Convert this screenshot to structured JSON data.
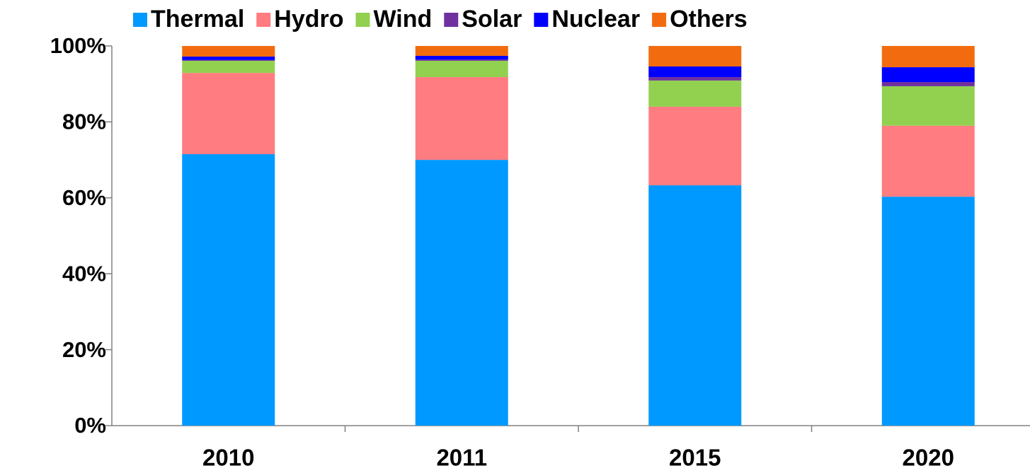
{
  "chart_data": {
    "type": "stacked_bar",
    "categories": [
      "2010",
      "2011",
      "2015",
      "2020"
    ],
    "series": [
      {
        "name": "Thermal",
        "color": "#0099ff",
        "values": [
          71.5,
          70.0,
          63.3,
          60.3
        ]
      },
      {
        "name": "Hydro",
        "color": "#ff7c80",
        "values": [
          21.4,
          21.8,
          20.7,
          18.7
        ]
      },
      {
        "name": "Wind",
        "color": "#92d050",
        "values": [
          3.2,
          4.3,
          6.9,
          10.4
        ]
      },
      {
        "name": "Solar",
        "color": "#7030a0",
        "values": [
          0.2,
          0.3,
          0.9,
          1.1
        ]
      },
      {
        "name": "Nuclear",
        "color": "#0000ff",
        "values": [
          0.9,
          1.0,
          2.8,
          3.9
        ]
      },
      {
        "name": "Others",
        "color": "#f26c0f",
        "values": [
          2.8,
          2.6,
          5.4,
          5.6
        ]
      }
    ],
    "ylim": [
      0,
      100
    ],
    "yticks": [
      {
        "value": 0,
        "label": "0%"
      },
      {
        "value": 20,
        "label": "20%"
      },
      {
        "value": 40,
        "label": "40%"
      },
      {
        "value": 60,
        "label": "60%"
      },
      {
        "value": 80,
        "label": "80%"
      },
      {
        "value": 100,
        "label": "100%"
      }
    ],
    "legend": "top"
  }
}
